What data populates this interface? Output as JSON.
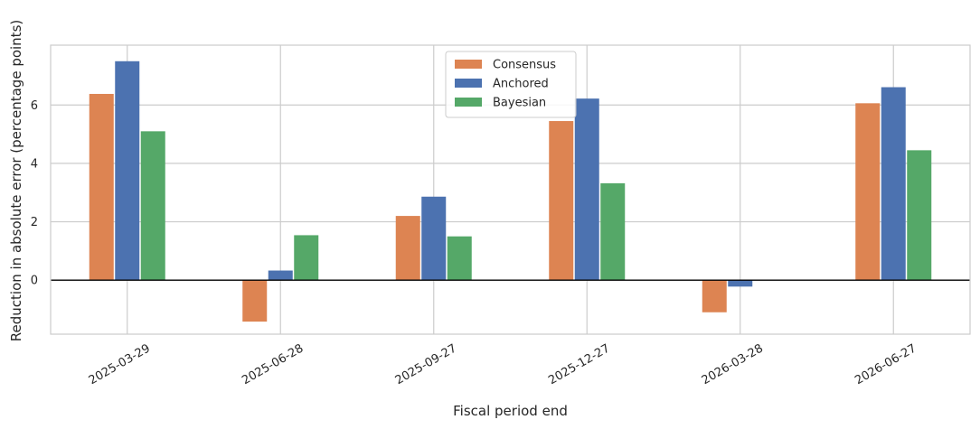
{
  "chart_data": {
    "type": "bar",
    "title": "",
    "xlabel": "Fiscal period end",
    "ylabel": "Reduction in absolute error (percentage points)",
    "categories": [
      "2025-03-29",
      "2025-06-28",
      "2025-09-27",
      "2025-12-27",
      "2026-03-28",
      "2026-06-27"
    ],
    "series": [
      {
        "name": "Consensus",
        "color": "#dd8452",
        "values": [
          6.38,
          -1.42,
          2.2,
          5.45,
          -1.1,
          6.06
        ]
      },
      {
        "name": "Anchored",
        "color": "#4c72b0",
        "values": [
          7.5,
          0.33,
          2.86,
          6.22,
          -0.22,
          6.61
        ]
      },
      {
        "name": "Bayesian",
        "color": "#55a868",
        "values": [
          5.1,
          1.54,
          1.5,
          3.32,
          0.0,
          4.45
        ]
      }
    ],
    "yticks": [
      0,
      2,
      4,
      6
    ],
    "ylim": [
      -1.85,
      8.05
    ],
    "grid": true,
    "legend_position": "top-center",
    "zero_line": true
  }
}
